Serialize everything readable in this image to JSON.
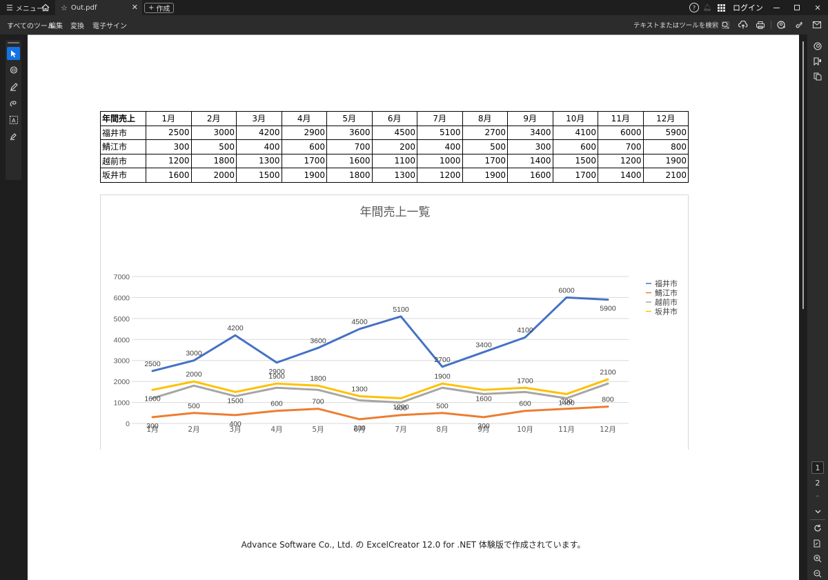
{
  "titlebar": {
    "menu_label": "メニュー",
    "tab_title": "Out.pdf",
    "create_label": "作成",
    "login_label": "ログイン"
  },
  "toolbar": {
    "menu_items": [
      "すべてのツール",
      "編集",
      "変換",
      "電子サイン"
    ],
    "search_label": "テキストまたはツールを検索"
  },
  "page_nav": {
    "current_page": "1",
    "next_page": "2"
  },
  "table": {
    "header_label": "年間売上",
    "months": [
      "1月",
      "2月",
      "3月",
      "4月",
      "5月",
      "6月",
      "7月",
      "8月",
      "9月",
      "10月",
      "11月",
      "12月"
    ],
    "rows": [
      {
        "city": "福井市",
        "values": [
          "2500",
          "3000",
          "4200",
          "2900",
          "3600",
          "4500",
          "5100",
          "2700",
          "3400",
          "4100",
          "6000",
          "5900"
        ]
      },
      {
        "city": "鯖江市",
        "values": [
          "300",
          "500",
          "400",
          "600",
          "700",
          "200",
          "400",
          "500",
          "300",
          "600",
          "700",
          "800"
        ]
      },
      {
        "city": "越前市",
        "values": [
          "1200",
          "1800",
          "1300",
          "1700",
          "1600",
          "1100",
          "1000",
          "1700",
          "1400",
          "1500",
          "1200",
          "1900"
        ]
      },
      {
        "city": "坂井市",
        "values": [
          "1600",
          "2000",
          "1500",
          "1900",
          "1800",
          "1300",
          "1200",
          "1900",
          "1600",
          "1700",
          "1400",
          "2100"
        ]
      }
    ]
  },
  "chart_data": {
    "type": "line",
    "title": "年間売上一覧",
    "xlabel": "",
    "ylabel": "",
    "categories": [
      "1月",
      "2月",
      "3月",
      "4月",
      "5月",
      "6月",
      "7月",
      "8月",
      "9月",
      "10月",
      "11月",
      "12月"
    ],
    "ylim": [
      0,
      7000
    ],
    "yticks": [
      "0",
      "1000",
      "2000",
      "3000",
      "4000",
      "5000",
      "6000",
      "7000"
    ],
    "grid": true,
    "legend_position": "right",
    "series": [
      {
        "name": "福井市",
        "color": "#4472c4",
        "values": [
          2500,
          3000,
          4200,
          2900,
          3600,
          4500,
          5100,
          2700,
          3400,
          4100,
          6000,
          5900
        ]
      },
      {
        "name": "鯖江市",
        "color": "#ed7d31",
        "values": [
          300,
          500,
          400,
          600,
          700,
          200,
          400,
          500,
          300,
          600,
          700,
          800
        ]
      },
      {
        "name": "越前市",
        "color": "#a5a5a5",
        "values": [
          1200,
          1800,
          1300,
          1700,
          1600,
          1100,
          1000,
          1700,
          1400,
          1500,
          1200,
          1900
        ]
      },
      {
        "name": "坂井市",
        "color": "#ffc000",
        "values": [
          1600,
          2000,
          1500,
          1900,
          1800,
          1300,
          1200,
          1900,
          1600,
          1700,
          1400,
          2100
        ]
      }
    ]
  },
  "footer_text": "Advance Software Co., Ltd. の ExcelCreator 12.0 for .NET 体験版で作成されています。"
}
